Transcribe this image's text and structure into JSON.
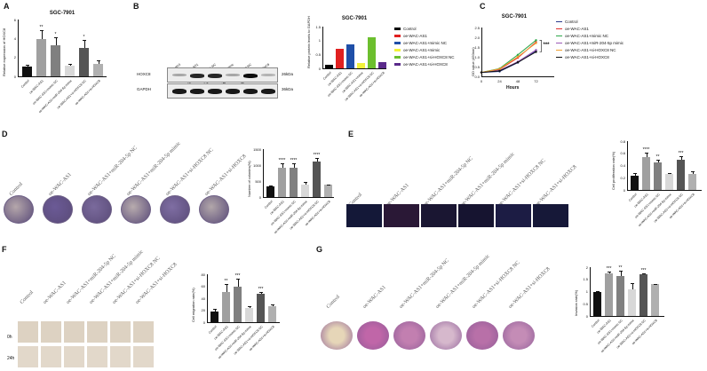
{
  "panels": {
    "A": "A",
    "B": "B",
    "C": "C",
    "D": "D",
    "E": "E",
    "F": "F",
    "G": "G"
  },
  "groups": [
    "Control",
    "oe-WAC-AS1",
    "oe-WAC-AS1+mimic NC",
    "oe-WAC-AS1+miR-204-5p mimic",
    "oe-WAC-AS1+si-HOXC8 NC",
    "oe-WAC-AS1+si-HOXC8"
  ],
  "sample_labels": [
    "Control",
    "oe-WAC-AS1",
    "oe-WAC-AS1+miR-204-5p NC",
    "oe-WAC-AS1+miR-204-5p mimic",
    "oe-WAC-AS1+si-HOXC8 NC",
    "oe-WAC-AS1+si-HOXC8"
  ],
  "blot": {
    "lanes": [
      "Control",
      "oe-WAC-AS1",
      "oe-WAC-AS1+mimic NC",
      "oe-WAC-AS1+miR-204-5p mimic",
      "oe-WAC-AS1+si-HOXC8 NC",
      "oe-WAC-AS1+si-HOXC8"
    ],
    "rows": [
      {
        "name": "HOXC8",
        "size": "26kDa",
        "intensity": [
          0.35,
          0.85,
          0.85,
          0.35,
          0.95,
          0.3
        ]
      },
      {
        "name": "GAPDH",
        "size": "36kDa",
        "intensity": [
          0.9,
          0.9,
          0.9,
          0.9,
          0.9,
          0.9
        ]
      }
    ]
  },
  "timepoints": {
    "row0": "0h",
    "row1": "24h"
  },
  "chart_data": [
    {
      "id": "A",
      "type": "bar",
      "title": "SGC-7901",
      "ylabel": "Relative expression of HOXC8",
      "ylim": [
        0,
        6
      ],
      "yticks": [
        0,
        2,
        4,
        6
      ],
      "categories": [
        "Control",
        "oe-WAC-AS1",
        "oe-WAC-AS1+mimic NC",
        "oe-WAC-AS1+miR-204-5p mimic",
        "oe-WAC-AS1+si-HOXC8 NC",
        "oe-WAC-AS1+si-HOXC8"
      ],
      "values": [
        1.0,
        3.9,
        3.3,
        1.1,
        3.0,
        1.3
      ],
      "errors": [
        0.2,
        1.0,
        0.8,
        0.2,
        0.8,
        0.4
      ],
      "significance": [
        "",
        "**",
        "*",
        "",
        "*",
        ""
      ],
      "colors": [
        "#111111",
        "#a0a0a0",
        "#808080",
        "#d8d8d8",
        "#555555",
        "#b0b0b0"
      ]
    },
    {
      "id": "B",
      "type": "bar",
      "title": "SGC-7901",
      "ylabel": "Relative protein levels to GAPDH",
      "ylim": [
        0,
        1.5
      ],
      "yticks": [
        0.0,
        0.5,
        1.0,
        1.5
      ],
      "categories": [
        "Control",
        "oe-WAC-AS1",
        "oe-WAC-AS1+mimic NC",
        "oe-WAC-AS1+mimic",
        "oe-WAC-AS1+si-HOXC8 NC",
        "oe-WAC-AS1+si-HOXC8"
      ],
      "values": [
        0.12,
        0.69,
        0.87,
        0.18,
        1.12,
        0.21
      ],
      "colors": [
        "#000000",
        "#e02020",
        "#1f4fa8",
        "#f2f23a",
        "#6cbf2e",
        "#5a2a8a"
      ],
      "legend": [
        "Control",
        "oe-WAC-AS1",
        "oe-WAC-AS1+mimic NC",
        "oe-WAC-AS1+mimic",
        "oe-WAC-AS1+si-HOXC8 NC",
        "oe-WAC-AS1+si-HOXC8"
      ],
      "legend_position": "right"
    },
    {
      "id": "C",
      "type": "line",
      "title": "SGC-7901",
      "xlabel": "Hours",
      "ylabel": "OD value (450nm)",
      "x": [
        0,
        24,
        48,
        72
      ],
      "xlim": [
        0,
        96
      ],
      "ylim": [
        0,
        2.5
      ],
      "yticks": [
        0.0,
        0.5,
        1.0,
        1.5,
        2.0,
        2.5
      ],
      "series": [
        {
          "name": "Control",
          "color": "#2a3a8c",
          "values": [
            0.2,
            0.25,
            0.7,
            1.3
          ]
        },
        {
          "name": "oe-WAC-AS1",
          "color": "#e03030",
          "values": [
            0.2,
            0.35,
            0.95,
            1.75
          ]
        },
        {
          "name": "oe-WAC-AS1+mimic NC",
          "color": "#2ea84a",
          "values": [
            0.2,
            0.4,
            1.1,
            1.85
          ]
        },
        {
          "name": "oe-WAC-AS1+miR-204-5p mimic",
          "color": "#9b59b6",
          "values": [
            0.2,
            0.3,
            0.75,
            1.35
          ]
        },
        {
          "name": "oe-WAC-AS1+si-HOXC8 NC",
          "color": "#f0a030",
          "values": [
            0.2,
            0.38,
            1.0,
            1.7
          ]
        },
        {
          "name": "oe-WAC-AS1+si-HOXC8",
          "color": "#111111",
          "values": [
            0.2,
            0.28,
            0.72,
            1.25
          ]
        }
      ],
      "annotation": "***"
    },
    {
      "id": "D",
      "type": "bar",
      "ylabel": "Number of colonies(%)",
      "ylim": [
        0,
        1500
      ],
      "yticks": [
        0,
        500,
        1000,
        1500
      ],
      "categories": [
        "Control",
        "oe-WAC-AS1",
        "oe-WAC-AS1+mimic NC",
        "oe-WAC-AS1+miR-204-5p mimic",
        "oe-WAC-AS1+si-HOXC8 NC",
        "oe-WAC-AS1+si-HOXC8"
      ],
      "values": [
        330,
        920,
        910,
        400,
        1100,
        380
      ],
      "errors": [
        30,
        130,
        140,
        70,
        130,
        10
      ],
      "significance": [
        "",
        "****",
        "****",
        "",
        "****",
        ""
      ],
      "colors": [
        "#111111",
        "#a0a0a0",
        "#808080",
        "#d8d8d8",
        "#555555",
        "#b0b0b0"
      ]
    },
    {
      "id": "E",
      "type": "bar",
      "ylabel": "Cell proliferation rate(%)",
      "ylim": [
        0,
        0.8
      ],
      "yticks": [
        0.0,
        0.2,
        0.4,
        0.6,
        0.8
      ],
      "categories": [
        "Control",
        "oe-WAC-AS1",
        "oe-WAC-AS1+mimic NC",
        "oe-WAC-AS1+miR-204-5p mimic",
        "oe-WAC-AS1+si-HOXC8 NC",
        "oe-WAC-AS1+si-HOXC8"
      ],
      "values": [
        0.23,
        0.54,
        0.45,
        0.26,
        0.49,
        0.26
      ],
      "errors": [
        0.05,
        0.07,
        0.04,
        0.02,
        0.06,
        0.04
      ],
      "significance": [
        "",
        "****",
        "**",
        "",
        "***",
        ""
      ],
      "colors": [
        "#111111",
        "#a0a0a0",
        "#808080",
        "#d8d8d8",
        "#555555",
        "#b0b0b0"
      ]
    },
    {
      "id": "F",
      "type": "bar",
      "ylabel": "Cell migration rate(%)",
      "ylim": [
        0,
        80
      ],
      "yticks": [
        0,
        20,
        40,
        60,
        80
      ],
      "categories": [
        "Control",
        "oe-WAC-AS1",
        "oe-WAC-AS1+mimic NC",
        "oe-WAC-AS1+miR-204-5p mimic",
        "oe-WAC-AS1+si-HOXC8 NC",
        "oe-WAC-AS1+si-HOXC8"
      ],
      "values": [
        18,
        51,
        59,
        24,
        47,
        27
      ],
      "errors": [
        4,
        13,
        13,
        2,
        3,
        3
      ],
      "significance": [
        "",
        "**",
        "***",
        "",
        "***",
        ""
      ],
      "colors": [
        "#111111",
        "#a0a0a0",
        "#808080",
        "#d8d8d8",
        "#555555",
        "#b0b0b0"
      ]
    },
    {
      "id": "G",
      "type": "bar",
      "ylabel": "Invasion rate(%)",
      "ylim": [
        0,
        2.0
      ],
      "yticks": [
        0.0,
        0.5,
        1.0,
        1.5,
        2.0
      ],
      "categories": [
        "Control",
        "oe-WAC-AS1",
        "oe-WAC-AS1+mimic NC",
        "oe-WAC-AS1+miR-204-5p mimic",
        "oe-WAC-AS1+si-HOXC8 NC",
        "oe-WAC-AS1+si-HOXC8"
      ],
      "values": [
        1.0,
        1.75,
        1.65,
        1.1,
        1.7,
        1.3
      ],
      "errors": [
        0.03,
        0.07,
        0.2,
        0.25,
        0.05,
        0.02
      ],
      "significance": [
        "",
        "***",
        "**",
        "",
        "***",
        ""
      ],
      "colors": [
        "#111111",
        "#a0a0a0",
        "#808080",
        "#d8d8d8",
        "#555555",
        "#b0b0b0"
      ]
    }
  ]
}
